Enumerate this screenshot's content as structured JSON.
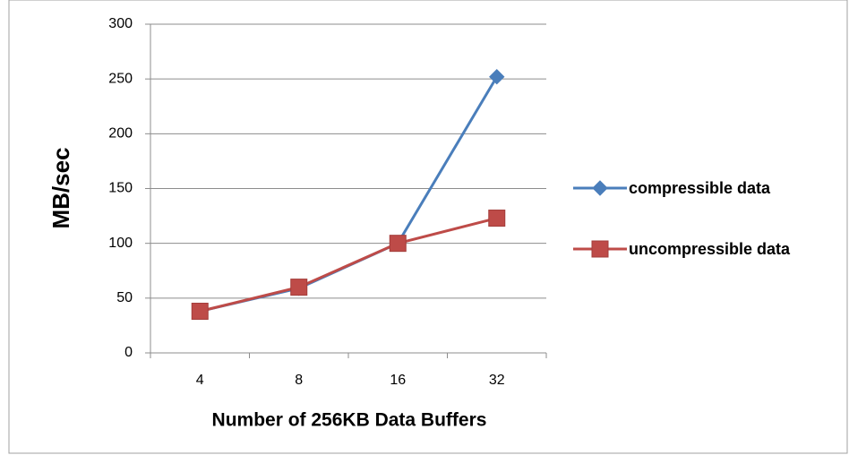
{
  "chart_data": {
    "type": "line",
    "categories": [
      "4",
      "8",
      "16",
      "32"
    ],
    "series": [
      {
        "name": "compressible data",
        "color": "#4a7ebb",
        "marker": "diamond",
        "values": [
          38,
          59,
          100,
          252
        ]
      },
      {
        "name": "uncompressible data",
        "color": "#be4b48",
        "marker": "square",
        "values": [
          38,
          60,
          100,
          123
        ]
      }
    ],
    "ylim": [
      0,
      300
    ],
    "yticks": [
      0,
      50,
      100,
      150,
      200,
      250,
      300
    ],
    "grid": true,
    "xlabel": "Number of 256KB Data Buffers",
    "ylabel": "MB/sec",
    "legend": "right"
  }
}
